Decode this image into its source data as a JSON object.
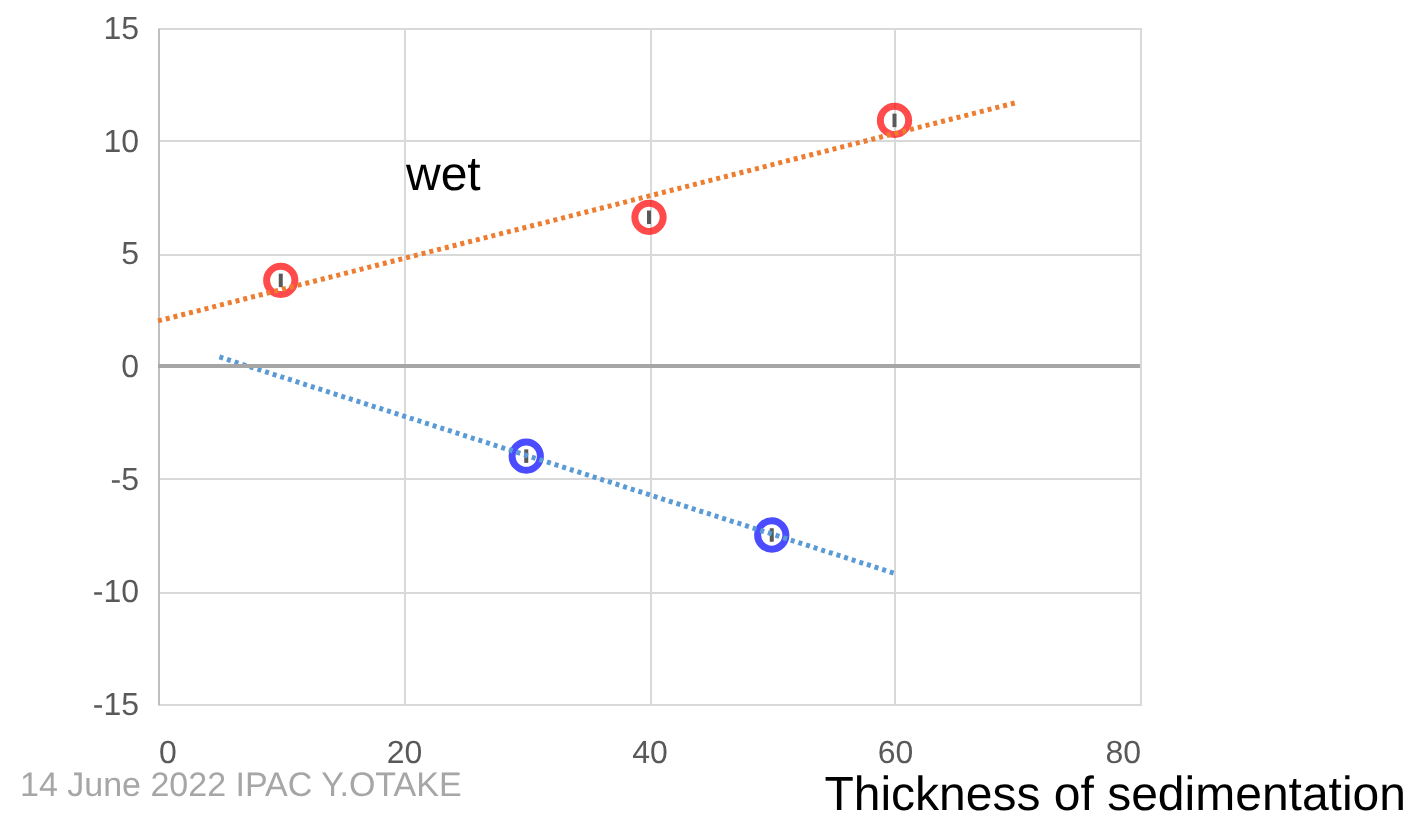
{
  "chart_data": {
    "type": "scatter",
    "xlabel": "Thickness of sedimentation",
    "xlim": [
      0,
      80
    ],
    "xticks": [
      0,
      20,
      40,
      60,
      80
    ],
    "ylim": [
      -15,
      15
    ],
    "yticks": [
      -15,
      -10,
      -5,
      0,
      5,
      10,
      15
    ],
    "grid": true,
    "marker": "circle",
    "series": [
      {
        "color": "#ff0000",
        "x": [
          10,
          40,
          60
        ],
        "values": [
          3.8,
          6.6,
          10.9
        ],
        "errors": [
          0.3,
          0.3,
          0.3
        ]
      },
      {
        "color": "#0000ff",
        "x": [
          30,
          50
        ],
        "values": [
          -4.0,
          -7.5
        ],
        "errors": [
          0.3,
          0.3
        ]
      },
      {
        "type": "line",
        "marker": "none",
        "color": "#ed7d31",
        "line_style": "dotted",
        "x": [
          0,
          70
        ],
        "values": [
          2.0,
          11.7
        ]
      },
      {
        "type": "line",
        "marker": "none",
        "color": "#5b9bd5",
        "line_style": "dotted",
        "x": [
          5,
          60
        ],
        "values": [
          0.4,
          -9.2
        ]
      }
    ],
    "ref_lines": [
      {
        "axis": "y",
        "value": 0,
        "color": "#a6a6a6"
      }
    ],
    "annotations": [
      "wet",
      "14 June 2022 IPAC Y.OTAKE"
    ]
  }
}
